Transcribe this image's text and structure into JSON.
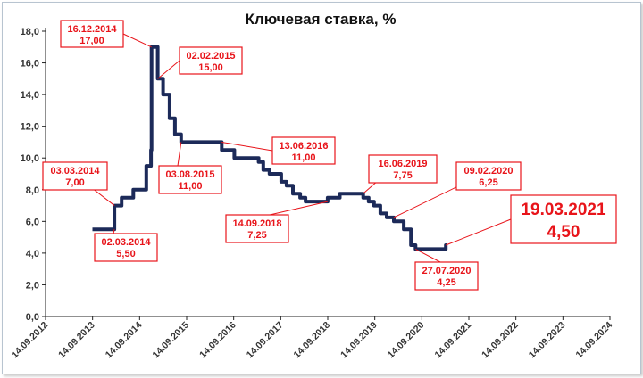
{
  "chart_data": {
    "type": "line",
    "title": "Ключевая ставка, %",
    "ylim": [
      0,
      18
    ],
    "y_ticks": [
      "0,0",
      "2,0",
      "4,0",
      "6,0",
      "8,0",
      "10,0",
      "12,0",
      "14,0",
      "16,0",
      "18,0"
    ],
    "x_ticks": [
      "14.09.2012",
      "14.09.2013",
      "14.09.2014",
      "14.09.2015",
      "14.09.2016",
      "14.09.2017",
      "14.09.2018",
      "14.09.2019",
      "14.09.2020",
      "14.09.2021",
      "14.09.2022",
      "14.09.2023",
      "14.09.2024"
    ],
    "xlim": [
      "2012-09-14",
      "2024-09-14"
    ],
    "grid": false,
    "colors": {
      "line": "#1c2a59",
      "callout": "#e8141a",
      "connector": "#e8141a"
    },
    "series": [
      {
        "x": [
          "2013-09-13",
          "2014-03-03",
          "2014-04-28",
          "2014-07-28",
          "2014-11-05",
          "2014-12-12",
          "2014-12-16",
          "2015-02-02",
          "2015-03-16",
          "2015-05-05",
          "2015-06-16",
          "2015-08-03",
          "2016-06-13",
          "2016-09-19",
          "2017-03-27",
          "2017-05-02",
          "2017-06-19",
          "2017-09-18",
          "2017-10-30",
          "2017-12-18",
          "2018-02-12",
          "2018-03-26",
          "2018-09-14",
          "2018-12-17",
          "2019-06-17",
          "2019-07-29",
          "2019-09-09",
          "2019-10-28",
          "2019-12-16",
          "2020-02-10",
          "2020-04-27",
          "2020-06-22",
          "2020-07-27",
          "2021-03-19",
          "2021-03-31"
        ],
        "values": [
          5.5,
          7.0,
          7.5,
          8.0,
          9.5,
          10.5,
          17.0,
          15.0,
          14.0,
          12.5,
          11.5,
          11.0,
          10.5,
          10.0,
          9.75,
          9.25,
          9.0,
          8.5,
          8.25,
          7.75,
          7.5,
          7.25,
          7.5,
          7.75,
          7.5,
          7.25,
          7.0,
          6.5,
          6.25,
          6.0,
          5.5,
          4.5,
          4.25,
          4.5,
          4.5
        ]
      }
    ],
    "annotations": [
      {
        "date": "16.12.2014",
        "value": "17,00",
        "x": "2014-12-16",
        "y": 17.0
      },
      {
        "date": "02.02.2015",
        "value": "15,00",
        "x": "2015-02-02",
        "y": 15.0
      },
      {
        "date": "13.06.2016",
        "value": "11,00",
        "x": "2016-06-13",
        "y": 11.0
      },
      {
        "date": "03.03.2014",
        "value": "7,00",
        "x": "2014-03-03",
        "y": 7.0
      },
      {
        "date": "03.08.2015",
        "value": "11,00",
        "x": "2015-08-03",
        "y": 11.0
      },
      {
        "date": "16.06.2019",
        "value": "7,75",
        "x": "2019-06-16",
        "y": 7.75
      },
      {
        "date": "09.02.2020",
        "value": "6,25",
        "x": "2020-02-09",
        "y": 6.25
      },
      {
        "date": "14.09.2018",
        "value": "7,25",
        "x": "2018-09-14",
        "y": 7.25
      },
      {
        "date": "19.03.2021",
        "value": "4,50",
        "x": "2021-03-19",
        "y": 4.5,
        "emphasis": true
      },
      {
        "date": "02.03.2014",
        "value": "5,50",
        "x": "2014-03-02",
        "y": 5.5
      },
      {
        "date": "27.07.2020",
        "value": "4,25",
        "x": "2020-07-27",
        "y": 4.25
      }
    ]
  }
}
